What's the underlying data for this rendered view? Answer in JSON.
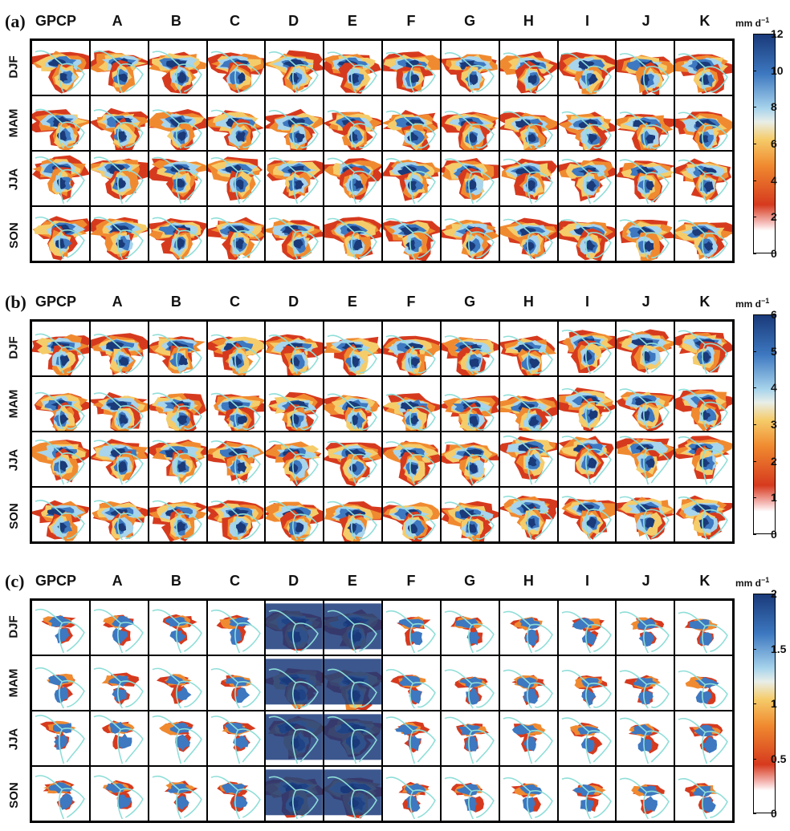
{
  "columns": [
    "GPCP",
    "A",
    "B",
    "C",
    "D",
    "E",
    "F",
    "G",
    "H",
    "I",
    "J",
    "K"
  ],
  "rows": [
    "DJF",
    "MAM",
    "JJA",
    "SON"
  ],
  "units": "mm d",
  "units_exponent": "−1",
  "colors": {
    "deep_blue": "#1a3a7a",
    "blue": "#3d78c0",
    "light_blue": "#a8d4ec",
    "yellow": "#f5cc6a",
    "orange": "#f08a30",
    "red": "#d63a1e",
    "coastline": "#8fded8",
    "white": "#ffffff"
  },
  "panels": [
    {
      "id": "a",
      "label": "(a)",
      "colorbar_ticks": [
        "0",
        "2",
        "4",
        "6",
        "8",
        "10",
        "12"
      ]
    },
    {
      "id": "b",
      "label": "(b)",
      "colorbar_ticks": [
        "0",
        "1",
        "2",
        "3",
        "4",
        "5",
        "6"
      ]
    },
    {
      "id": "c",
      "label": "(c)",
      "colorbar_ticks": [
        "0",
        "0.5",
        "1",
        "1.5",
        "2"
      ]
    }
  ]
}
